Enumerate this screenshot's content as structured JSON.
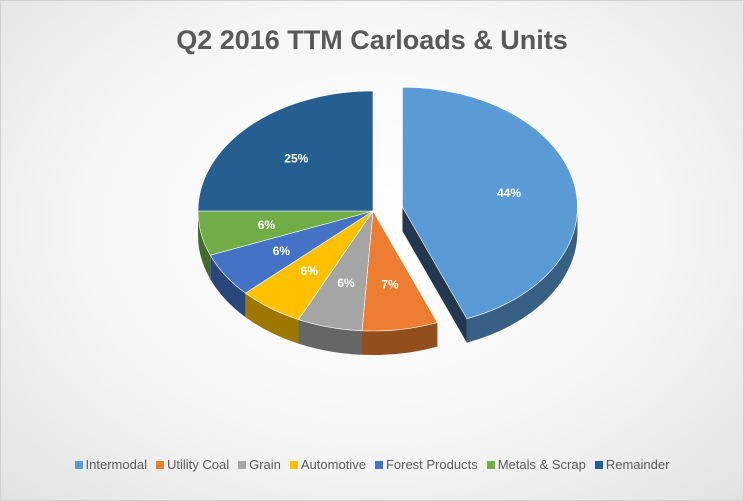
{
  "chart_data": {
    "type": "pie",
    "title": "Q2 2016 TTM Carloads & Units",
    "slices": [
      {
        "name": "Intermodal",
        "value": 44,
        "label": "44%",
        "color": "#5b9bd5",
        "exploded": true
      },
      {
        "name": "Utility Coal",
        "value": 7,
        "label": "7%",
        "color": "#ed7d31"
      },
      {
        "name": "Grain",
        "value": 6,
        "label": "6%",
        "color": "#a5a5a5"
      },
      {
        "name": "Automotive",
        "value": 6,
        "label": "6%",
        "color": "#ffc000"
      },
      {
        "name": "Forest Products",
        "value": 6,
        "label": "6%",
        "color": "#4472c4"
      },
      {
        "name": "Metals & Scrap",
        "value": 6,
        "label": "6%",
        "color": "#70ad47"
      },
      {
        "name": "Remainder",
        "value": 25,
        "label": "25%",
        "color": "#255e91"
      }
    ],
    "legend_position": "bottom",
    "style": "3d-exploded-pie"
  }
}
